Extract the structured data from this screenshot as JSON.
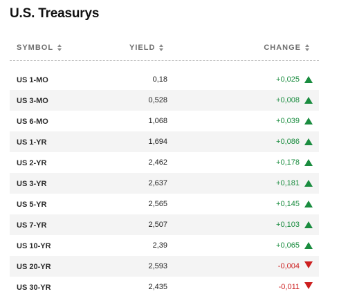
{
  "title": "U.S. Treasurys",
  "columns": {
    "symbol": "SYMBOL",
    "yield": "YIELD",
    "change": "CHANGE"
  },
  "colors": {
    "up": "#1a8c3f",
    "down": "#cc1f1f"
  },
  "rows": [
    {
      "symbol": "US 1-MO",
      "yield": "0,18",
      "change": "+0,025",
      "direction": "up"
    },
    {
      "symbol": "US 3-MO",
      "yield": "0,528",
      "change": "+0,008",
      "direction": "up"
    },
    {
      "symbol": "US 6-MO",
      "yield": "1,068",
      "change": "+0,039",
      "direction": "up"
    },
    {
      "symbol": "US 1-YR",
      "yield": "1,694",
      "change": "+0,086",
      "direction": "up"
    },
    {
      "symbol": "US 2-YR",
      "yield": "2,462",
      "change": "+0,178",
      "direction": "up"
    },
    {
      "symbol": "US 3-YR",
      "yield": "2,637",
      "change": "+0,181",
      "direction": "up"
    },
    {
      "symbol": "US 5-YR",
      "yield": "2,565",
      "change": "+0,145",
      "direction": "up"
    },
    {
      "symbol": "US 7-YR",
      "yield": "2,507",
      "change": "+0,103",
      "direction": "up"
    },
    {
      "symbol": "US 10-YR",
      "yield": "2,39",
      "change": "+0,065",
      "direction": "up"
    },
    {
      "symbol": "US 20-YR",
      "yield": "2,593",
      "change": "-0,004",
      "direction": "down"
    },
    {
      "symbol": "US 30-YR",
      "yield": "2,435",
      "change": "-0,011",
      "direction": "down"
    }
  ]
}
